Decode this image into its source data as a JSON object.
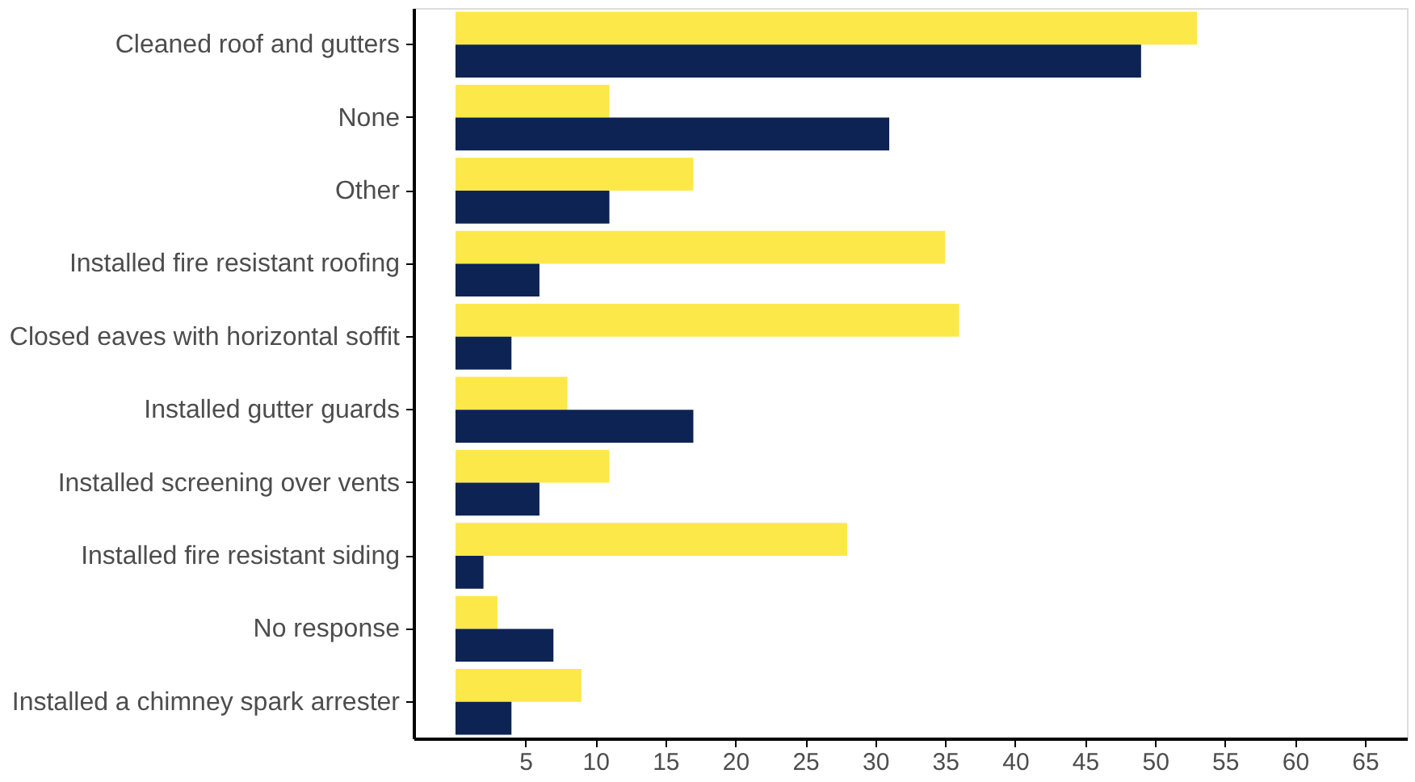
{
  "chart_data": {
    "type": "bar",
    "orientation": "horizontal",
    "categories": [
      "Cleaned roof and gutters",
      "None",
      "Other",
      "Installed fire resistant roofing",
      "Closed eaves with horizontal soffit",
      "Installed gutter guards",
      "Installed screening over vents",
      "Installed fire resistant siding",
      "No response",
      "Installed a chimney spark arrester"
    ],
    "series": [
      {
        "color": "#fde84a",
        "values": [
          53,
          11,
          17,
          35,
          36,
          8,
          11,
          28,
          3,
          9
        ]
      },
      {
        "color": "#0d2353",
        "values": [
          49,
          31,
          11,
          6,
          4,
          17,
          6,
          2,
          7,
          4
        ]
      }
    ],
    "xlim": [
      -3,
      68
    ],
    "xticks": [
      5,
      10,
      15,
      20,
      25,
      30,
      35,
      40,
      45,
      50,
      55,
      60,
      65
    ],
    "grid": false,
    "legend": false
  }
}
